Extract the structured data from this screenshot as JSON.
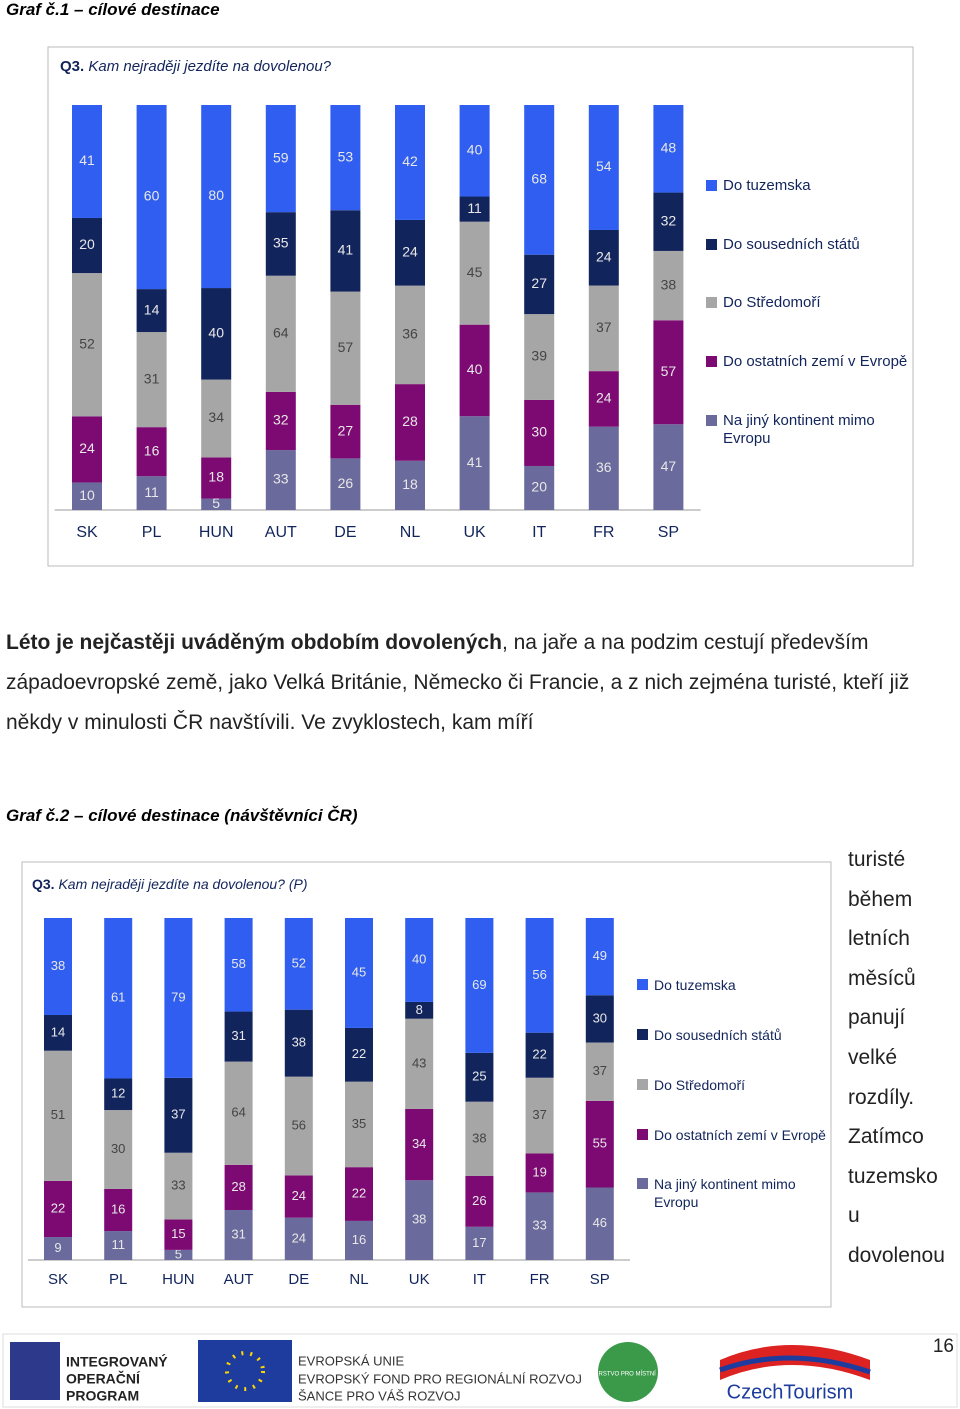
{
  "heading1": "Graf č.1 – cílové destinace",
  "chart_data": [
    {
      "type": "bar",
      "question_label": "Q3.",
      "question": "Kam nejraději jezdíte na dovolenou?",
      "categories": [
        "SK",
        "PL",
        "HUN",
        "AUT",
        "DE",
        "NL",
        "UK",
        "IT",
        "FR",
        "SP"
      ],
      "series": [
        {
          "name": "Do tuzemska",
          "color": "#2f5ef0",
          "values": [
            41,
            60,
            80,
            59,
            53,
            42,
            40,
            68,
            54,
            48
          ]
        },
        {
          "name": "Do sousedních států",
          "color": "#12245c",
          "values": [
            20,
            14,
            40,
            35,
            41,
            24,
            11,
            27,
            24,
            32
          ]
        },
        {
          "name": "Do Středomoří",
          "color": "#a6a6a6",
          "values": [
            52,
            31,
            34,
            64,
            57,
            36,
            45,
            39,
            37,
            38
          ]
        },
        {
          "name": "Do ostatních zemí v Evropě",
          "color": "#7d0a72",
          "values": [
            24,
            16,
            18,
            32,
            27,
            28,
            40,
            30,
            24,
            57
          ]
        },
        {
          "name": "Na jiný kontinent mimo Evropu",
          "color": "#6a6a9c",
          "values": [
            10,
            11,
            5,
            33,
            26,
            18,
            41,
            20,
            36,
            47
          ]
        }
      ]
    },
    {
      "type": "bar",
      "question_label": "Q3.",
      "question": "Kam nejraději jezdíte na dovolenou? (P)",
      "categories": [
        "SK",
        "PL",
        "HUN",
        "AUT",
        "DE",
        "NL",
        "UK",
        "IT",
        "FR",
        "SP"
      ],
      "series": [
        {
          "name": "Do tuzemska",
          "color": "#2f5ef0",
          "values": [
            38,
            61,
            79,
            58,
            52,
            45,
            40,
            69,
            56,
            49
          ]
        },
        {
          "name": "Do sousedních států",
          "color": "#12245c",
          "values": [
            14,
            12,
            37,
            31,
            38,
            22,
            8,
            25,
            22,
            30
          ]
        },
        {
          "name": "Do Středomoří",
          "color": "#a6a6a6",
          "values": [
            51,
            30,
            33,
            64,
            56,
            35,
            43,
            38,
            37,
            37
          ]
        },
        {
          "name": "Do ostatních zemí v Evropě",
          "color": "#7d0a72",
          "values": [
            22,
            16,
            15,
            28,
            24,
            22,
            34,
            26,
            19,
            55
          ]
        },
        {
          "name": "Na jiný kontinent mimo Evropu",
          "color": "#6a6a9c",
          "values": [
            9,
            11,
            5,
            31,
            24,
            16,
            38,
            17,
            33,
            46
          ]
        }
      ]
    }
  ],
  "paragraph": {
    "bold": "Léto je nejčastěji uváděným obdobím dovolených",
    "text": ", na jaře a na podzim cestují především západoevropské země, jako Velká Británie, Německo či Francie, a z nich zejména turisté, kteří již někdy v minulosti ČR navštívili. Ve zvyklostech, kam míří"
  },
  "heading2": "Graf č.2 – cílové destinace (návštěvníci ČR)",
  "side_text": [
    "turisté",
    "během",
    "letních",
    "měsíců",
    "panují",
    "velké",
    "rozdíly.",
    "Zatímco",
    "tuzemsko",
    "u",
    "dovolenou"
  ],
  "footer": {
    "iop": [
      "INTEGROVANÝ",
      "OPERAČNÍ",
      "PROGRAM"
    ],
    "eu": [
      "EVROPSKÁ UNIE",
      "EVROPSKÝ FOND PRO REGIONÁLNÍ ROZVOJ",
      "ŠANCE PRO VÁŠ ROZVOJ"
    ],
    "mmr": "MINISTERSTVO PRO MÍSTNÍ ROZVOJ",
    "czt": "CzechTourism"
  },
  "page_number": "16"
}
